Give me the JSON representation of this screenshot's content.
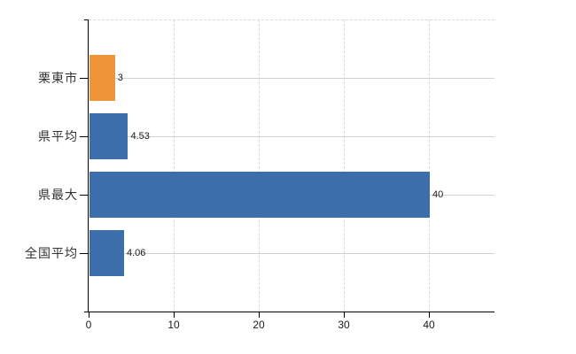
{
  "chart_data": {
    "type": "bar",
    "orientation": "horizontal",
    "title": "",
    "xlabel": "",
    "ylabel": "",
    "categories": [
      "栗東市",
      "県平均",
      "県最大",
      "全国平均"
    ],
    "values": [
      3,
      4.53,
      40,
      4.06
    ],
    "value_labels": [
      "3",
      "4.53",
      "40",
      "4.06"
    ],
    "series_colors": [
      "#ef9439",
      "#3c6eab",
      "#3c6eab",
      "#3c6eab"
    ],
    "x_ticks": [
      0,
      10,
      20,
      30,
      40
    ],
    "x_tick_labels": [
      "0",
      "10",
      "20",
      "30",
      "40"
    ],
    "xlim": [
      0,
      47.7
    ],
    "grid": "on",
    "legend": "none"
  },
  "colors": {
    "bar_highlight": "#ef9439",
    "bar_default": "#3c6eab",
    "axis": "#000000",
    "gridline_horizontal": "#cdd5cd",
    "gridline_vertical_dashed": "#d9d9d9",
    "plot_top_border_dashed": "#d9d9d9",
    "category_text": "#333333",
    "value_text": "#1a1a1a",
    "background": "#ffffff"
  }
}
